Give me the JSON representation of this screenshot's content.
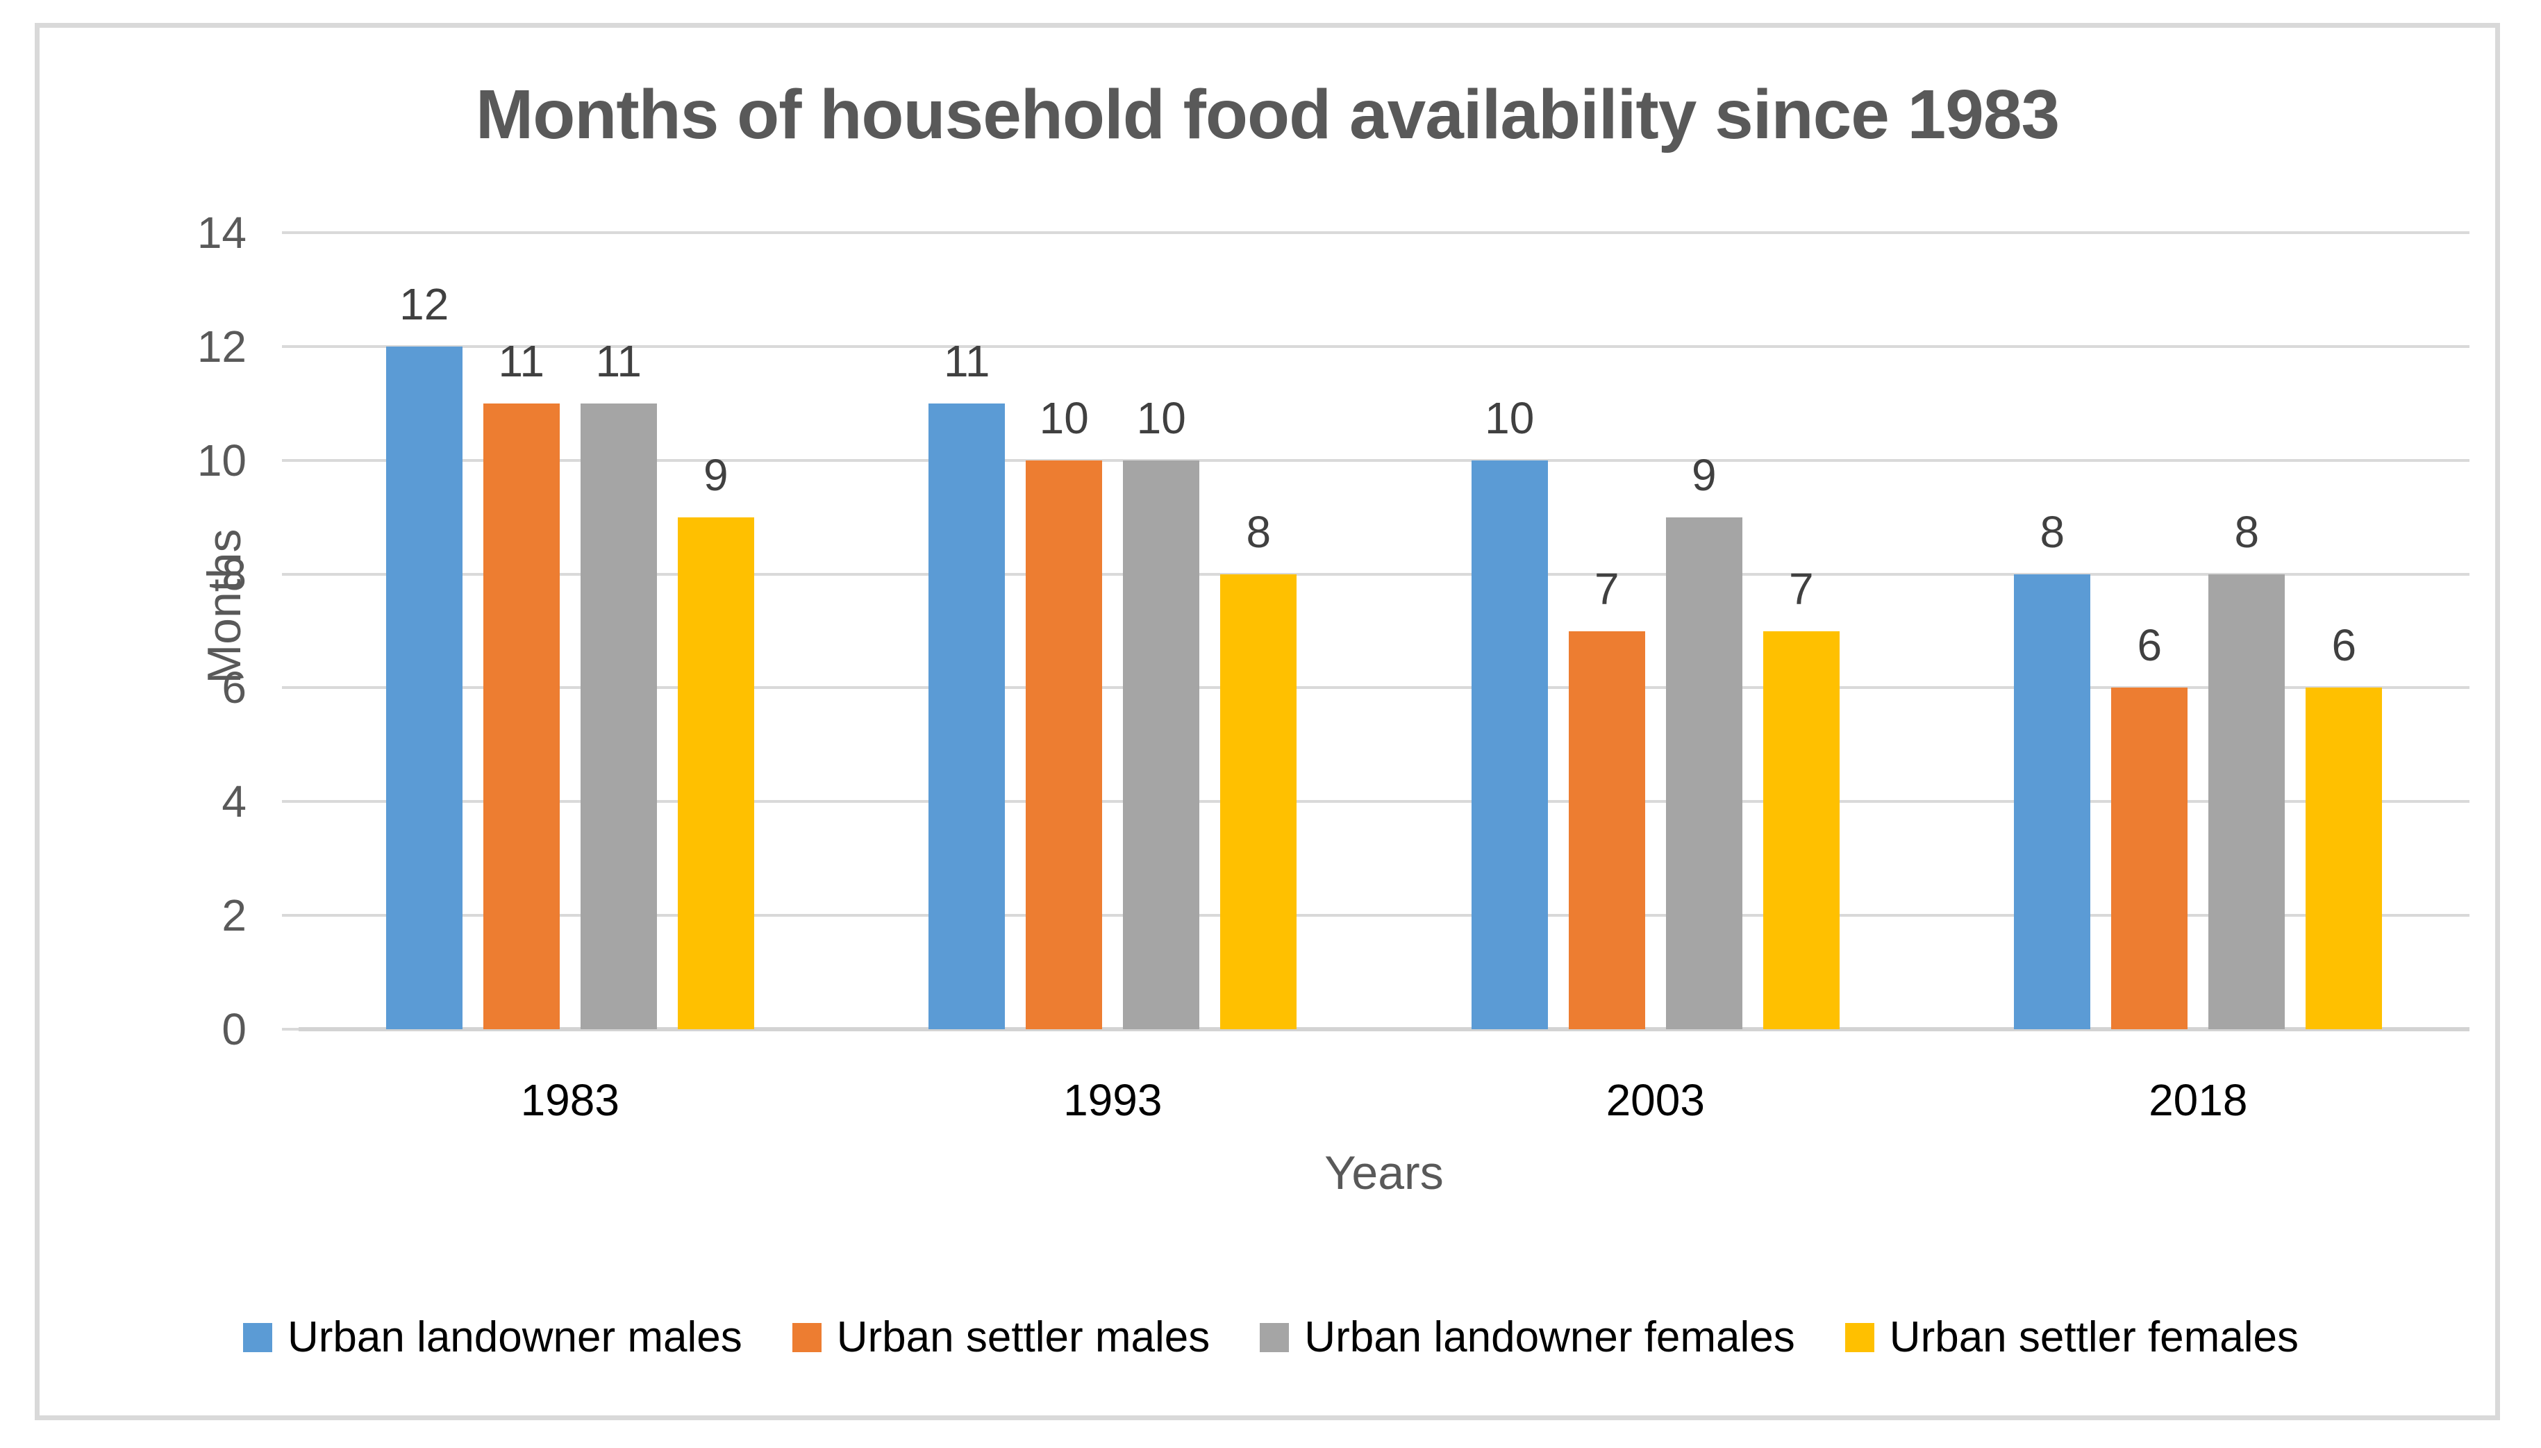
{
  "chart_data": {
    "type": "bar",
    "title": "Months of household food availability since 1983",
    "xlabel": "Years",
    "ylabel": "Months",
    "categories": [
      "1983",
      "1993",
      "2003",
      "2018"
    ],
    "series": [
      {
        "name": "Urban landowner males",
        "color": "#5B9BD5",
        "values": [
          12,
          11,
          10,
          8
        ]
      },
      {
        "name": "Urban settler males",
        "color": "#ED7D31",
        "values": [
          11,
          10,
          7,
          6
        ]
      },
      {
        "name": "Urban landowner females",
        "color": "#A5A5A5",
        "values": [
          11,
          10,
          9,
          8
        ]
      },
      {
        "name": "Urban settler females",
        "color": "#FFC000",
        "values": [
          9,
          8,
          7,
          6
        ]
      }
    ],
    "ylim": [
      0,
      14
    ],
    "ytick_step": 2,
    "yticks": [
      "0",
      "2",
      "4",
      "6",
      "8",
      "10",
      "12",
      "14"
    ],
    "grid": true,
    "data_labels": true,
    "legend_position": "bottom"
  },
  "colors": {
    "grid": "#D9D9D9",
    "axis_line": "#D3D3D3",
    "tick_mark": "#D9D9D9",
    "border": "#D9D9D9",
    "title_text": "#595959",
    "axis_text": "#595959",
    "data_label_text": "#404040",
    "category_text": "#000000",
    "legend_text": "#000000",
    "background": "#FFFFFF"
  }
}
